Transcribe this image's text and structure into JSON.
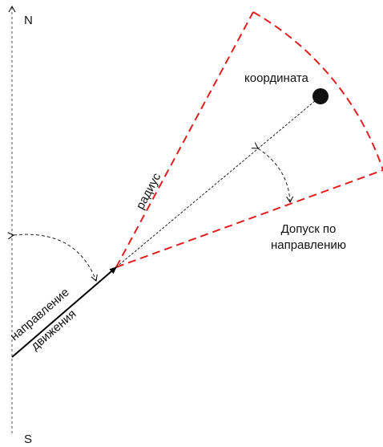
{
  "labels": {
    "north": "N",
    "south": "S",
    "point": "координата",
    "radius": "радиус",
    "tolerance_line1": "Допуск по",
    "tolerance_line2": "направлению",
    "direction_line1": "направление",
    "direction_line2": "движения"
  }
}
